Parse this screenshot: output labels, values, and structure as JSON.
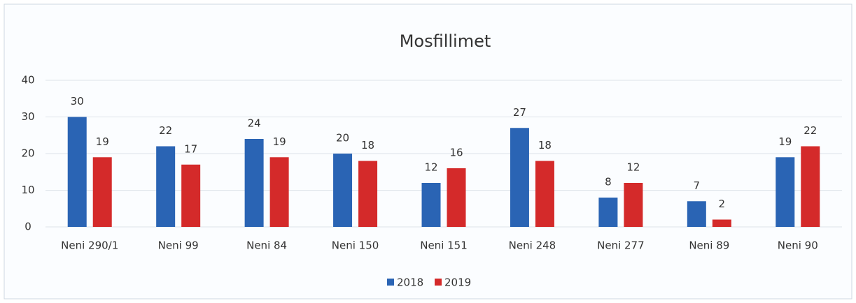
{
  "chart_data": {
    "type": "bar",
    "title": "Mosfillimet",
    "categories": [
      "Neni 290/1",
      "Neni 99",
      "Neni 84",
      "Neni 150",
      "Neni 151",
      "Neni 248",
      "Neni 277",
      "Neni 89",
      "Neni 90"
    ],
    "series": [
      {
        "name": "2018",
        "color": "#2a64b4",
        "values": [
          30,
          22,
          24,
          20,
          12,
          27,
          8,
          7,
          19
        ]
      },
      {
        "name": "2019",
        "color": "#d42a2a",
        "values": [
          19,
          17,
          19,
          18,
          16,
          18,
          12,
          2,
          22
        ]
      }
    ],
    "ylim": [
      0,
      40
    ],
    "yticks": [
      0,
      10,
      20,
      30,
      40
    ],
    "grid": true,
    "legend": "bottom"
  }
}
